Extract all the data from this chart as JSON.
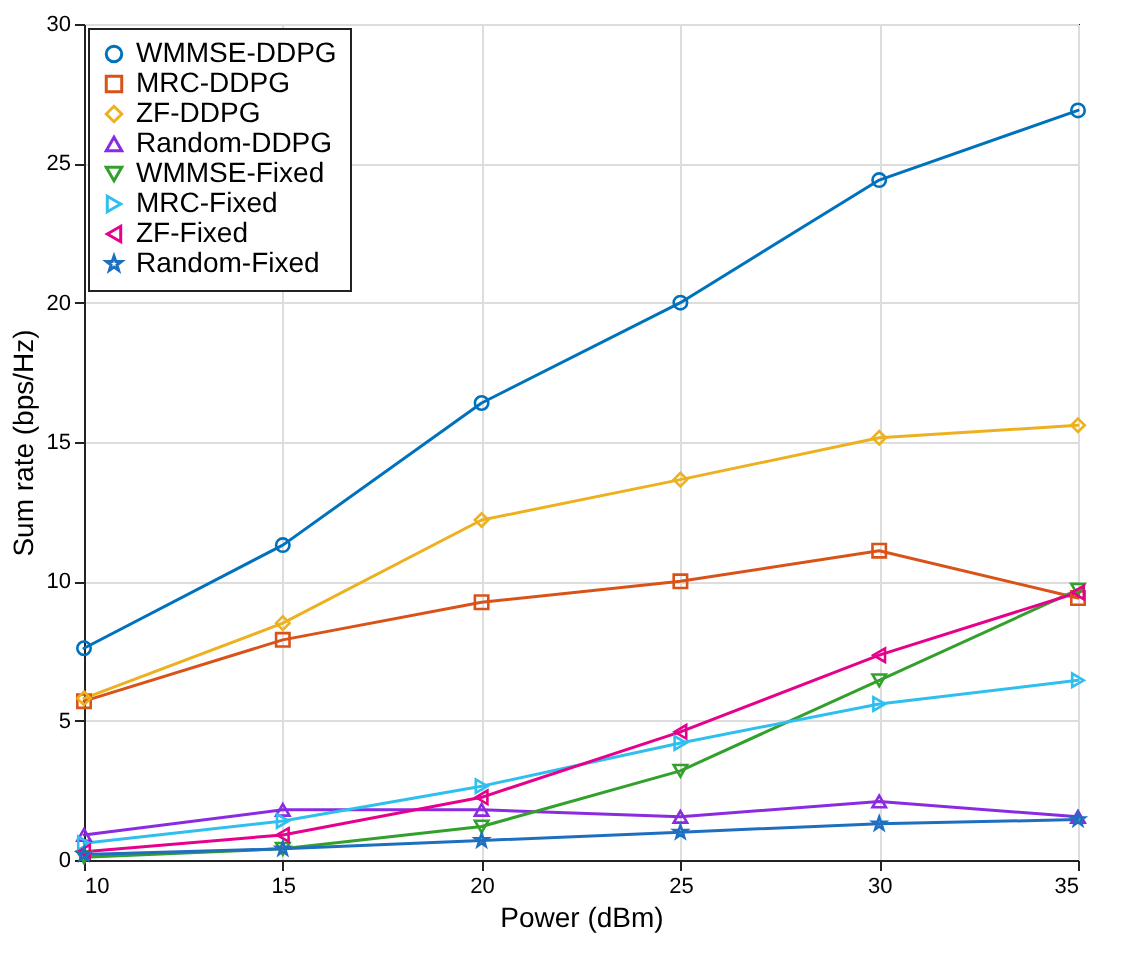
{
  "chart_data": {
    "type": "line",
    "xlabel": "Power (dBm)",
    "ylabel": "Sum rate (bps/Hz)",
    "x": [
      10,
      15,
      20,
      25,
      30,
      35
    ],
    "series": [
      {
        "name": "WMMSE-DDPG",
        "color": "#0072bd",
        "marker": "circle",
        "values": [
          7.6,
          11.3,
          16.4,
          20.0,
          24.4,
          26.9
        ]
      },
      {
        "name": "MRC-DDPG",
        "color": "#d95319",
        "marker": "square",
        "values": [
          5.7,
          7.9,
          9.25,
          10.0,
          11.1,
          9.4
        ]
      },
      {
        "name": "ZF-DDPG",
        "color": "#edb120",
        "marker": "diamond",
        "values": [
          5.8,
          8.5,
          12.2,
          13.65,
          15.15,
          15.6
        ]
      },
      {
        "name": "Random-DDPG",
        "color": "#8a2be2",
        "marker": "triangle-up",
        "values": [
          0.9,
          1.8,
          1.8,
          1.55,
          2.1,
          1.55
        ]
      },
      {
        "name": "WMMSE-Fixed",
        "color": "#33a02c",
        "marker": "triangle-down",
        "values": [
          0.1,
          0.4,
          1.2,
          3.2,
          6.45,
          9.7
        ]
      },
      {
        "name": "MRC-Fixed",
        "color": "#2fbfef",
        "marker": "triangle-right",
        "values": [
          0.6,
          1.4,
          2.65,
          4.2,
          5.6,
          6.45
        ]
      },
      {
        "name": "ZF-Fixed",
        "color": "#e6008c",
        "marker": "triangle-left",
        "values": [
          0.3,
          0.9,
          2.25,
          4.6,
          7.35,
          9.6
        ]
      },
      {
        "name": "Random-Fixed",
        "color": "#1f6fc0",
        "marker": "star",
        "values": [
          0.2,
          0.4,
          0.7,
          1.0,
          1.3,
          1.45
        ]
      }
    ],
    "xlim": [
      10,
      35
    ],
    "xticks": [
      10,
      15,
      20,
      25,
      30,
      35
    ],
    "ylim": [
      0,
      30
    ],
    "yticks": [
      0,
      5,
      10,
      15,
      20,
      25,
      30
    ],
    "grid": true,
    "legend": "top left"
  }
}
